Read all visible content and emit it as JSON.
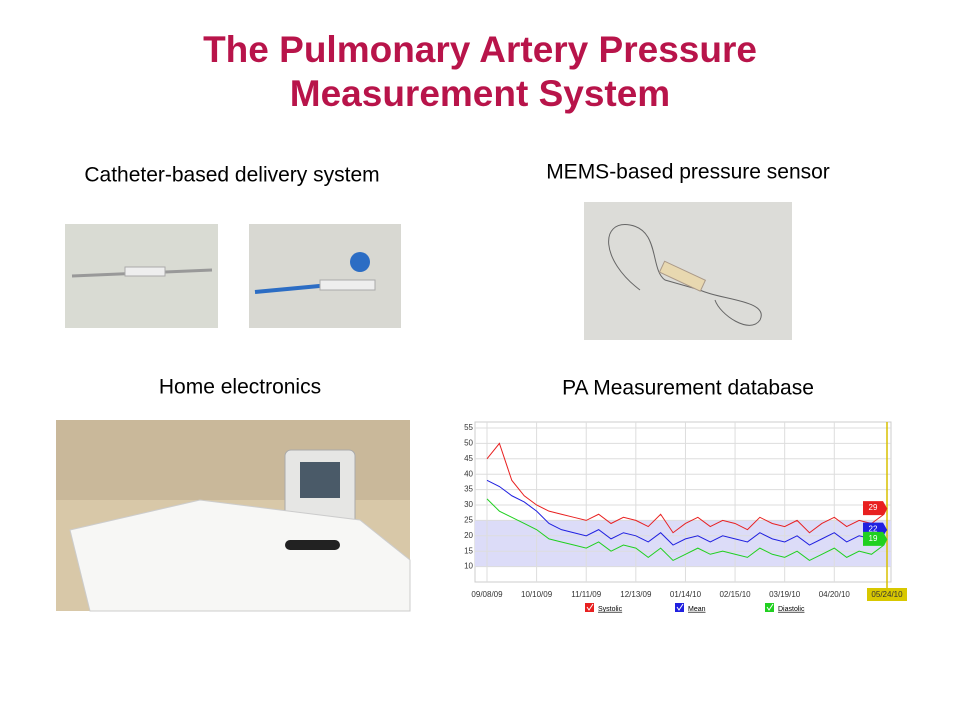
{
  "title": [
    "The Pulmonary Artery Pressure",
    "Measurement System"
  ],
  "captions": [
    "Catheter-based delivery system",
    "MEMS-based pressure sensor",
    "Home electronics",
    "PA Measurement database"
  ],
  "chart_data": {
    "type": "line",
    "x": [
      "09/08/09",
      "09/16/09",
      "09/24/09",
      "10/02/09",
      "10/10/09",
      "10/18/09",
      "10/26/09",
      "11/03/09",
      "11/11/09",
      "11/19/09",
      "11/27/09",
      "12/05/09",
      "12/13/09",
      "12/21/09",
      "12/29/09",
      "01/06/10",
      "01/14/10",
      "01/22/10",
      "01/30/10",
      "02/07/10",
      "02/15/10",
      "02/23/10",
      "03/03/10",
      "03/11/10",
      "03/19/10",
      "03/27/10",
      "04/04/10",
      "04/12/10",
      "04/20/10",
      "04/28/10",
      "05/06/10",
      "05/14/10",
      "05/22/10",
      "05/24/10"
    ],
    "series": [
      {
        "name": "Systolic",
        "color": "#e82020",
        "values": [
          45,
          50,
          38,
          33,
          30,
          28,
          27,
          26,
          25,
          27,
          24,
          26,
          25,
          23,
          27,
          21,
          24,
          26,
          23,
          25,
          24,
          22,
          26,
          24,
          23,
          25,
          21,
          24,
          26,
          23,
          25,
          24,
          27,
          29
        ]
      },
      {
        "name": "Mean",
        "color": "#2020e0",
        "values": [
          38,
          36,
          33,
          31,
          28,
          24,
          22,
          21,
          20,
          22,
          19,
          21,
          20,
          18,
          21,
          17,
          19,
          20,
          18,
          20,
          19,
          18,
          21,
          19,
          18,
          20,
          17,
          19,
          21,
          18,
          20,
          19,
          21,
          22
        ]
      },
      {
        "name": "Diastolic",
        "color": "#20d020",
        "values": [
          32,
          28,
          26,
          24,
          22,
          19,
          18,
          17,
          16,
          18,
          15,
          17,
          16,
          13,
          16,
          12,
          14,
          16,
          14,
          15,
          14,
          13,
          16,
          14,
          13,
          15,
          12,
          14,
          16,
          13,
          15,
          14,
          17,
          19
        ]
      }
    ],
    "target_band": [
      10,
      25
    ],
    "ylim": [
      5,
      55
    ],
    "yticks": [
      10,
      15,
      20,
      25,
      30,
      35,
      40,
      45,
      50,
      55
    ],
    "xlim": [
      "09/08/09",
      "05/24/10"
    ],
    "xticks": [
      "09/08/09",
      "10/10/09",
      "11/11/09",
      "12/13/09",
      "01/14/10",
      "02/15/10",
      "03/19/10",
      "04/20/10",
      "05/24/10"
    ],
    "grid": true
  }
}
